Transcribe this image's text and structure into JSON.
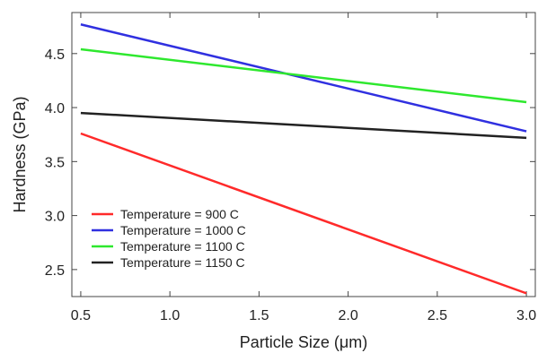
{
  "chart_data": {
    "type": "line",
    "title": "",
    "xlabel": "Particle Size (μm)",
    "ylabel": "Hardness (GPa)",
    "xlim": [
      0.45,
      3.05
    ],
    "ylim": [
      2.25,
      4.88
    ],
    "x_ticks": [
      0.5,
      1.0,
      1.5,
      2.0,
      2.5,
      3.0
    ],
    "x_tick_labels": [
      "0.5",
      "1.0",
      "1.5",
      "2.0",
      "2.5",
      "3.0"
    ],
    "y_ticks": [
      2.5,
      3.0,
      3.5,
      4.0,
      4.5
    ],
    "y_tick_labels": [
      "2.5",
      "3.0",
      "3.5",
      "4.0",
      "4.5"
    ],
    "grid": false,
    "legend_position": "bottom-left",
    "series": [
      {
        "name": "Temperature = 900 C",
        "color": "#ff2a2a",
        "x": [
          0.5,
          3.0
        ],
        "y": [
          3.76,
          2.28
        ]
      },
      {
        "name": "Temperature = 1000 C",
        "color": "#3030e0",
        "x": [
          0.5,
          3.0
        ],
        "y": [
          4.77,
          3.78
        ]
      },
      {
        "name": "Temperature = 1100 C",
        "color": "#2ee82e",
        "x": [
          0.5,
          3.0
        ],
        "y": [
          4.54,
          4.05
        ]
      },
      {
        "name": "Temperature = 1150 C",
        "color": "#222222",
        "x": [
          0.5,
          3.0
        ],
        "y": [
          3.95,
          3.72
        ]
      }
    ]
  }
}
